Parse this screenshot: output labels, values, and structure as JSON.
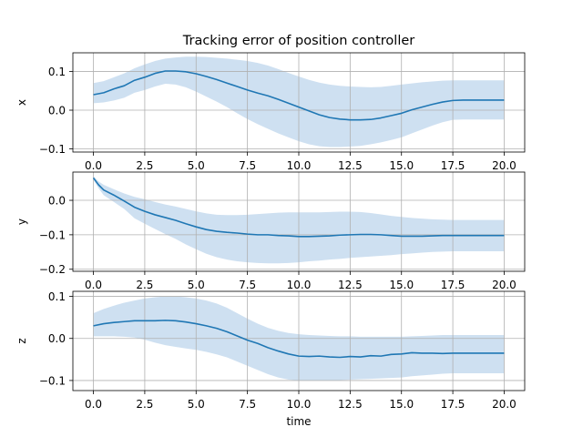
{
  "chart_data": {
    "type": "line",
    "title": "Tracking error of position controller",
    "xlabel": "time",
    "x_ticks": [
      0,
      2.5,
      5,
      7.5,
      10,
      12.5,
      15,
      17.5,
      20
    ],
    "x_tick_labels": [
      "0.0",
      "2.5",
      "5.0",
      "7.5",
      "10.0",
      "12.5",
      "15.0",
      "17.5",
      "20.0"
    ],
    "xlim": [
      -1,
      21
    ],
    "grid": true,
    "line_color": "#1f77b4",
    "band_color": "#c6dbef",
    "subplots": [
      {
        "ylabel": "x",
        "ylim": [
          -0.108,
          0.148
        ],
        "y_ticks": [
          -0.1,
          0,
          0.1
        ],
        "y_tick_labels": [
          "−0.1",
          "0.0",
          "0.1"
        ],
        "x": [
          0,
          0.5,
          1,
          1.5,
          2,
          2.5,
          3,
          3.5,
          4,
          4.5,
          5,
          5.5,
          6,
          6.5,
          7,
          7.5,
          8,
          8.5,
          9,
          9.5,
          10,
          10.5,
          11,
          11.5,
          12,
          12.5,
          13,
          13.5,
          14,
          14.5,
          15,
          15.5,
          16,
          16.5,
          17,
          17.5,
          18,
          18.5,
          19,
          19.5,
          20
        ],
        "mean": [
          0.04,
          0.045,
          0.055,
          0.063,
          0.077,
          0.085,
          0.095,
          0.101,
          0.101,
          0.099,
          0.094,
          0.087,
          0.079,
          0.07,
          0.061,
          0.052,
          0.044,
          0.037,
          0.028,
          0.018,
          0.008,
          -0.002,
          -0.012,
          -0.019,
          -0.023,
          -0.025,
          -0.025,
          -0.024,
          -0.02,
          -0.014,
          -0.008,
          0.001,
          0.008,
          0.015,
          0.021,
          0.025,
          0.026,
          0.026,
          0.026,
          0.026,
          0.026
        ],
        "upper": [
          0.07,
          0.075,
          0.085,
          0.095,
          0.108,
          0.118,
          0.127,
          0.133,
          0.136,
          0.138,
          0.138,
          0.137,
          0.135,
          0.133,
          0.13,
          0.127,
          0.122,
          0.115,
          0.106,
          0.096,
          0.087,
          0.078,
          0.071,
          0.066,
          0.063,
          0.061,
          0.06,
          0.059,
          0.06,
          0.063,
          0.066,
          0.069,
          0.072,
          0.074,
          0.076,
          0.077,
          0.077,
          0.077,
          0.077,
          0.077,
          0.077
        ],
        "lower": [
          0.018,
          0.02,
          0.025,
          0.032,
          0.045,
          0.052,
          0.061,
          0.068,
          0.066,
          0.059,
          0.048,
          0.035,
          0.022,
          0.008,
          -0.008,
          -0.023,
          -0.036,
          -0.048,
          -0.06,
          -0.07,
          -0.08,
          -0.088,
          -0.093,
          -0.095,
          -0.095,
          -0.094,
          -0.092,
          -0.088,
          -0.083,
          -0.077,
          -0.07,
          -0.06,
          -0.05,
          -0.04,
          -0.031,
          -0.025,
          -0.024,
          -0.024,
          -0.024,
          -0.024,
          -0.024
        ]
      },
      {
        "ylabel": "y",
        "ylim": [
          -0.206,
          0.082
        ],
        "y_ticks": [
          -0.2,
          -0.1,
          0
        ],
        "y_tick_labels": [
          "−0.2",
          "−0.1",
          "0.0"
        ],
        "x": [
          0,
          0.25,
          0.5,
          1,
          1.5,
          2,
          2.5,
          3,
          3.5,
          4,
          4.5,
          5,
          5.5,
          6,
          6.5,
          7,
          7.5,
          8,
          8.5,
          9,
          9.5,
          10,
          10.5,
          11,
          11.5,
          12,
          12.5,
          13,
          13.5,
          14,
          14.5,
          15,
          15.5,
          16,
          16.5,
          17,
          17.5,
          18,
          18.5,
          19,
          19.5,
          20
        ],
        "mean": [
          0.065,
          0.045,
          0.03,
          0.015,
          -0.002,
          -0.02,
          -0.032,
          -0.042,
          -0.05,
          -0.058,
          -0.068,
          -0.077,
          -0.085,
          -0.09,
          -0.093,
          -0.095,
          -0.098,
          -0.1,
          -0.1,
          -0.102,
          -0.103,
          -0.105,
          -0.105,
          -0.104,
          -0.103,
          -0.101,
          -0.1,
          -0.099,
          -0.099,
          -0.1,
          -0.102,
          -0.104,
          -0.104,
          -0.104,
          -0.103,
          -0.102,
          -0.102,
          -0.102,
          -0.102,
          -0.102,
          -0.102,
          -0.102
        ],
        "upper": [
          0.07,
          0.055,
          0.045,
          0.032,
          0.02,
          0.01,
          0.003,
          -0.005,
          -0.012,
          -0.018,
          -0.025,
          -0.032,
          -0.038,
          -0.042,
          -0.043,
          -0.043,
          -0.042,
          -0.04,
          -0.038,
          -0.036,
          -0.035,
          -0.035,
          -0.035,
          -0.035,
          -0.034,
          -0.033,
          -0.033,
          -0.034,
          -0.037,
          -0.041,
          -0.045,
          -0.048,
          -0.051,
          -0.053,
          -0.055,
          -0.056,
          -0.057,
          -0.057,
          -0.057,
          -0.057,
          -0.057,
          -0.057
        ],
        "lower": [
          0.06,
          0.035,
          0.015,
          -0.005,
          -0.025,
          -0.052,
          -0.068,
          -0.083,
          -0.098,
          -0.112,
          -0.128,
          -0.142,
          -0.155,
          -0.165,
          -0.172,
          -0.177,
          -0.18,
          -0.182,
          -0.183,
          -0.183,
          -0.182,
          -0.18,
          -0.177,
          -0.175,
          -0.172,
          -0.17,
          -0.167,
          -0.165,
          -0.163,
          -0.161,
          -0.159,
          -0.156,
          -0.154,
          -0.152,
          -0.15,
          -0.149,
          -0.148,
          -0.148,
          -0.148,
          -0.148,
          -0.148,
          -0.148
        ]
      },
      {
        "ylabel": "z",
        "ylim": [
          -0.124,
          0.112
        ],
        "y_ticks": [
          -0.1,
          0,
          0.1
        ],
        "y_tick_labels": [
          "−0.1",
          "0.0",
          "0.1"
        ],
        "x": [
          0,
          0.5,
          1,
          1.5,
          2,
          2.5,
          3,
          3.5,
          4,
          4.5,
          5,
          5.5,
          6,
          6.5,
          7,
          7.5,
          8,
          8.5,
          9,
          9.5,
          10,
          10.5,
          11,
          11.5,
          12,
          12.5,
          13,
          13.5,
          14,
          14.5,
          15,
          15.5,
          16,
          16.5,
          17,
          17.5,
          18,
          18.5,
          19,
          19.5,
          20
        ],
        "mean": [
          0.03,
          0.035,
          0.038,
          0.04,
          0.042,
          0.042,
          0.042,
          0.043,
          0.042,
          0.039,
          0.035,
          0.03,
          0.024,
          0.016,
          0.006,
          -0.004,
          -0.012,
          -0.022,
          -0.03,
          -0.037,
          -0.042,
          -0.043,
          -0.042,
          -0.044,
          -0.045,
          -0.043,
          -0.044,
          -0.041,
          -0.042,
          -0.038,
          -0.037,
          -0.034,
          -0.035,
          -0.035,
          -0.036,
          -0.035,
          -0.035,
          -0.035,
          -0.035,
          -0.035,
          -0.035
        ],
        "upper": [
          0.06,
          0.07,
          0.078,
          0.085,
          0.09,
          0.095,
          0.098,
          0.1,
          0.1,
          0.098,
          0.095,
          0.09,
          0.083,
          0.073,
          0.06,
          0.047,
          0.035,
          0.025,
          0.018,
          0.013,
          0.01,
          0.008,
          0.007,
          0.006,
          0.005,
          0.005,
          0.004,
          0.004,
          0.004,
          0.004,
          0.004,
          0.005,
          0.006,
          0.007,
          0.008,
          0.008,
          0.008,
          0.008,
          0.008,
          0.008,
          0.008
        ],
        "lower": [
          0.005,
          0.005,
          0.005,
          0.004,
          0.002,
          -0.003,
          -0.01,
          -0.016,
          -0.02,
          -0.024,
          -0.027,
          -0.032,
          -0.038,
          -0.045,
          -0.055,
          -0.065,
          -0.075,
          -0.085,
          -0.093,
          -0.098,
          -0.1,
          -0.1,
          -0.1,
          -0.1,
          -0.099,
          -0.098,
          -0.097,
          -0.096,
          -0.095,
          -0.094,
          -0.093,
          -0.09,
          -0.088,
          -0.086,
          -0.084,
          -0.083,
          -0.083,
          -0.083,
          -0.083,
          -0.083,
          -0.083
        ]
      }
    ]
  }
}
